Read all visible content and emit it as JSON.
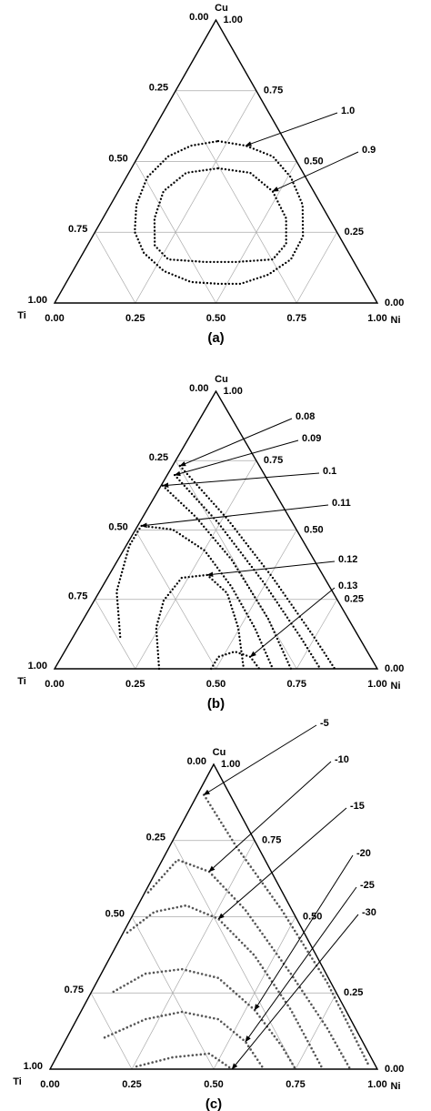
{
  "chart_data": [
    {
      "type": "ternary",
      "panel_label": "(a)",
      "corners": {
        "top": "Cu",
        "left": "Ti",
        "right": "Ni"
      },
      "left_ticks": [
        {
          "value": 0,
          "label": "0.00"
        },
        {
          "value": 0.25,
          "label": "0.25"
        },
        {
          "value": 0.5,
          "label": "0.50"
        },
        {
          "value": 0.75,
          "label": "0.75"
        },
        {
          "value": 1,
          "label": "1.00"
        }
      ],
      "right_ticks": [
        {
          "value": 0,
          "label": "0.00"
        },
        {
          "value": 0.25,
          "label": "0.25"
        },
        {
          "value": 0.5,
          "label": "0.50"
        },
        {
          "value": 0.75,
          "label": "0.75"
        },
        {
          "value": 1,
          "label": "1.00"
        }
      ],
      "bottom_ticks": [
        {
          "value": 0,
          "label": "0.00"
        },
        {
          "value": 0.25,
          "label": "0.25"
        },
        {
          "value": 0.5,
          "label": "0.50"
        },
        {
          "value": 0.75,
          "label": "0.75"
        },
        {
          "value": 1,
          "label": "1.00"
        }
      ],
      "grid": true,
      "marker": "filled",
      "series": [
        {
          "name": "1.0",
          "color": "#000000",
          "closed": true,
          "cu": [
            0.572,
            0.556,
            0.518,
            0.444,
            0.347,
            0.235,
            0.154,
            0.1,
            0.068,
            0.068,
            0.074,
            0.113,
            0.177,
            0.251,
            0.347,
            0.444,
            0.518,
            0.556
          ],
          "ni": [
            0.221,
            0.314,
            0.417,
            0.51,
            0.595,
            0.652,
            0.655,
            0.612,
            0.543,
            0.473,
            0.386,
            0.282,
            0.188,
            0.123,
            0.08,
            0.065,
            0.093,
            0.145
          ]
        },
        {
          "name": "0.9",
          "color": "#000000",
          "closed": true,
          "cu": [
            0.476,
            0.46,
            0.395,
            0.299,
            0.209,
            0.154,
            0.145,
            0.145,
            0.154,
            0.203,
            0.299,
            0.395,
            0.46
          ],
          "ni": [
            0.269,
            0.376,
            0.478,
            0.568,
            0.613,
            0.599,
            0.491,
            0.393,
            0.275,
            0.209,
            0.16,
            0.14,
            0.178
          ]
        }
      ]
    },
    {
      "type": "ternary",
      "panel_label": "(b)",
      "corners": {
        "top": "Cu",
        "left": "Ti",
        "right": "Ni"
      },
      "left_ticks": [
        {
          "value": 0,
          "label": "0.00"
        },
        {
          "value": 0.25,
          "label": "0.25"
        },
        {
          "value": 0.5,
          "label": "0.50"
        },
        {
          "value": 0.75,
          "label": "0.75"
        },
        {
          "value": 1,
          "label": "1.00"
        }
      ],
      "right_ticks": [
        {
          "value": 0,
          "label": "0.00"
        },
        {
          "value": 0.25,
          "label": "0.25"
        },
        {
          "value": 0.5,
          "label": "0.50"
        },
        {
          "value": 0.75,
          "label": "0.75"
        },
        {
          "value": 1,
          "label": "1.00"
        }
      ],
      "bottom_ticks": [
        {
          "value": 0,
          "label": "0.00"
        },
        {
          "value": 0.25,
          "label": "0.25"
        },
        {
          "value": 0.5,
          "label": "0.50"
        },
        {
          "value": 0.75,
          "label": "0.75"
        },
        {
          "value": 1,
          "label": "1.00"
        }
      ],
      "grid": true,
      "marker": "filled",
      "series": [
        {
          "name": "0.08",
          "color": "#000000",
          "closed": false,
          "cu": [
            0.731,
            0.541,
            0.328,
            0.115,
            0
          ],
          "ni": [
            0.023,
            0.264,
            0.512,
            0.746,
            0.868
          ]
        },
        {
          "name": "0.09",
          "color": "#000000",
          "closed": false,
          "cu": [
            0.698,
            0.525,
            0.311,
            0.115,
            0
          ],
          "ni": [
            0.023,
            0.245,
            0.492,
            0.704,
            0.823
          ]
        },
        {
          "name": "0.1",
          "color": "#000000",
          "closed": false,
          "cu": [
            0.66,
            0.548,
            0.393,
            0.18,
            0
          ],
          "ni": [
            0.005,
            0.163,
            0.352,
            0.572,
            0.732
          ]
        },
        {
          "name": "0.11",
          "color": "#000000",
          "closed": false,
          "cu": [
            0.115,
            0.279,
            0.443,
            0.515,
            0.502,
            0.426,
            0.295,
            0.148,
            0
          ],
          "ni": [
            0.146,
            0.053,
            0.01,
            0.011,
            0.115,
            0.252,
            0.401,
            0.546,
            0.676
          ]
        },
        {
          "name": "0.12",
          "color": "#000000",
          "closed": false,
          "cu": [
            0,
            0.148,
            0.246,
            0.328,
            0.338,
            0.272,
            0.148,
            0
          ],
          "ni": [
            0.324,
            0.241,
            0.215,
            0.23,
            0.304,
            0.399,
            0.495,
            0.586
          ]
        },
        {
          "name": "0.13",
          "color": "#000000",
          "closed": false,
          "cu": [
            0,
            0.043,
            0.062,
            0.043,
            0
          ],
          "ni": [
            0.485,
            0.486,
            0.527,
            0.585,
            0.634
          ]
        }
      ]
    },
    {
      "type": "ternary",
      "panel_label": "(c)",
      "corners": {
        "top": "Cu",
        "left": "Ti",
        "right": "Ni"
      },
      "left_ticks": [
        {
          "value": 0,
          "label": "0.00"
        },
        {
          "value": 0.25,
          "label": "0.25"
        },
        {
          "value": 0.5,
          "label": "0.50"
        },
        {
          "value": 0.75,
          "label": "0.75"
        },
        {
          "value": 1,
          "label": "1.00"
        }
      ],
      "right_ticks": [
        {
          "value": 0,
          "label": "0.00"
        },
        {
          "value": 0.25,
          "label": "0.25"
        },
        {
          "value": 0.5,
          "label": "0.50"
        },
        {
          "value": 0.75,
          "label": "0.75"
        },
        {
          "value": 1,
          "label": "1.00"
        }
      ],
      "bottom_ticks": [
        {
          "value": 0,
          "label": "0.00"
        },
        {
          "value": 0.25,
          "label": "0.25"
        },
        {
          "value": 0.5,
          "label": "0.50"
        },
        {
          "value": 0.75,
          "label": "0.75"
        },
        {
          "value": 1,
          "label": "1.00"
        }
      ],
      "grid": true,
      "marker": "hollow",
      "series": [
        {
          "name": "-5",
          "color": "#555555",
          "closed": false,
          "cu": [
            0.9,
            0.731,
            0.522,
            0.284,
            0.015
          ],
          "ni": [
            0.02,
            0.203,
            0.447,
            0.705,
            0.965
          ]
        },
        {
          "name": "-10",
          "color": "#555555",
          "closed": false,
          "cu": [
            0.58,
            0.687,
            0.648,
            0.522,
            0.313,
            0.134,
            0
          ],
          "ni": [
            0.01,
            0.046,
            0.162,
            0.336,
            0.579,
            0.78,
            0.917
          ]
        },
        {
          "name": "-15",
          "color": "#555555",
          "closed": false,
          "cu": [
            0.448,
            0.516,
            0.537,
            0.493,
            0.373,
            0.194,
            0
          ],
          "ni": [
            0.012,
            0.061,
            0.148,
            0.268,
            0.438,
            0.639,
            0.833
          ]
        },
        {
          "name": "-20",
          "color": "#555555",
          "closed": false,
          "cu": [
            0.254,
            0.313,
            0.328,
            0.299,
            0.194,
            0.075,
            0
          ],
          "ni": [
            0.067,
            0.135,
            0.239,
            0.365,
            0.528,
            0.671,
            0.75
          ]
        },
        {
          "name": "-25",
          "color": "#555555",
          "closed": false,
          "cu": [
            0.104,
            0.164,
            0.188,
            0.164,
            0.09,
            0
          ],
          "ni": [
            0.115,
            0.21,
            0.309,
            0.432,
            0.552,
            0.653
          ]
        },
        {
          "name": "-30",
          "color": "#555555",
          "closed": false,
          "cu": [
            0.009,
            0.039,
            0.051,
            0
          ],
          "ni": [
            0.26,
            0.356,
            0.461,
            0.556
          ]
        }
      ]
    }
  ]
}
